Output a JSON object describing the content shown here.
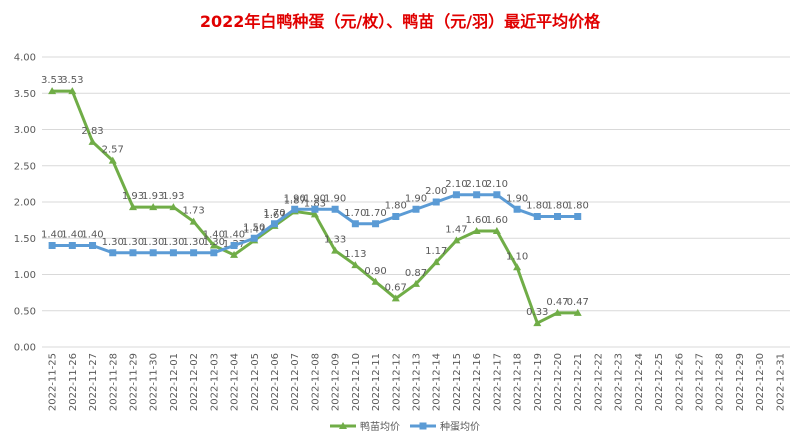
{
  "chart_data": {
    "type": "line",
    "title": "2022年白鸭种蛋（元/枚）、鸭苗（元/羽）最近平均价格",
    "categories": [
      "2022-11-25",
      "2022-11-26",
      "2022-11-27",
      "2022-11-28",
      "2022-11-29",
      "2022-11-30",
      "2022-12-01",
      "2022-12-02",
      "2022-12-03",
      "2022-12-04",
      "2022-12-05",
      "2022-12-06",
      "2022-12-07",
      "2022-12-08",
      "2022-12-09",
      "2022-12-10",
      "2022-12-11",
      "2022-12-12",
      "2022-12-13",
      "2022-12-14",
      "2022-12-15",
      "2022-12-16",
      "2022-12-17",
      "2022-12-18",
      "2022-12-19",
      "2022-12-20",
      "2022-12-21",
      "2022-12-22",
      "2022-12-23",
      "2022-12-24",
      "2022-12-25",
      "2022-12-26",
      "2022-12-27",
      "2022-12-28",
      "2022-12-29",
      "2022-12-30",
      "2022-12-31"
    ],
    "series": [
      {
        "name": "鸭苗均价",
        "color": "#70ad47",
        "marker": "triangle",
        "values": [
          3.53,
          3.53,
          2.83,
          2.57,
          1.93,
          1.93,
          1.93,
          1.73,
          1.4,
          1.27,
          1.47,
          1.67,
          1.87,
          1.83,
          1.33,
          1.13,
          0.9,
          0.67,
          0.87,
          1.17,
          1.47,
          1.6,
          1.6,
          1.1,
          0.33,
          0.47,
          0.47,
          null,
          null,
          null,
          null,
          null,
          null,
          null,
          null,
          null,
          null
        ],
        "value_labels": [
          "3.53",
          "3.53",
          "2.83",
          "2.57",
          "1.93",
          "1.93",
          "1.93",
          "1.73",
          "1.40",
          "1.27",
          "1.47",
          "1.67",
          "1.87",
          "1.83",
          "1.33",
          "1.13",
          "0.90",
          "0.67",
          "0.87",
          "1.17",
          "1.47",
          "1.60",
          "1.60",
          "1.10",
          "0.33",
          "0.47",
          "0.47",
          null,
          null,
          null,
          null,
          null,
          null,
          null,
          null,
          null,
          null
        ]
      },
      {
        "name": "种蛋均价",
        "color": "#5b9bd5",
        "marker": "square",
        "values": [
          1.4,
          1.4,
          1.4,
          1.3,
          1.3,
          1.3,
          1.3,
          1.3,
          1.3,
          1.4,
          1.5,
          1.7,
          1.9,
          1.9,
          1.9,
          1.7,
          1.7,
          1.8,
          1.9,
          2,
          2.1,
          2.1,
          2.1,
          1.9,
          1.8,
          1.8,
          1.8,
          null,
          null,
          null,
          null,
          null,
          null,
          null,
          null,
          null,
          null
        ],
        "value_labels": [
          "1.40",
          "1.40",
          "1.40",
          "1.30",
          "1.30",
          "1.30",
          "1.30",
          "1.30",
          "1.30",
          "1.40",
          "1.50",
          "1.70",
          "1.90",
          "1.90",
          "1.90",
          "1.70",
          "1.70",
          "1.80",
          "1.90",
          "2.00",
          "2.10",
          "2.10",
          "2.10",
          "1.90",
          "1.80",
          "1.80",
          "1.80",
          null,
          null,
          null,
          null,
          null,
          null,
          null,
          null,
          null,
          null
        ]
      }
    ],
    "ylim": [
      0,
      4
    ],
    "yticks": [
      {
        "value": 0,
        "label": "0.00"
      },
      {
        "value": 0.5,
        "label": "0.50"
      },
      {
        "value": 1,
        "label": "1.00"
      },
      {
        "value": 1.5,
        "label": "1.50"
      },
      {
        "value": 2,
        "label": "2.00"
      },
      {
        "value": 2.5,
        "label": "2.50"
      },
      {
        "value": 3,
        "label": "3.00"
      },
      {
        "value": 3.5,
        "label": "3.50"
      },
      {
        "value": 4,
        "label": "4.00"
      }
    ],
    "grid": true,
    "legend": "bottom"
  }
}
